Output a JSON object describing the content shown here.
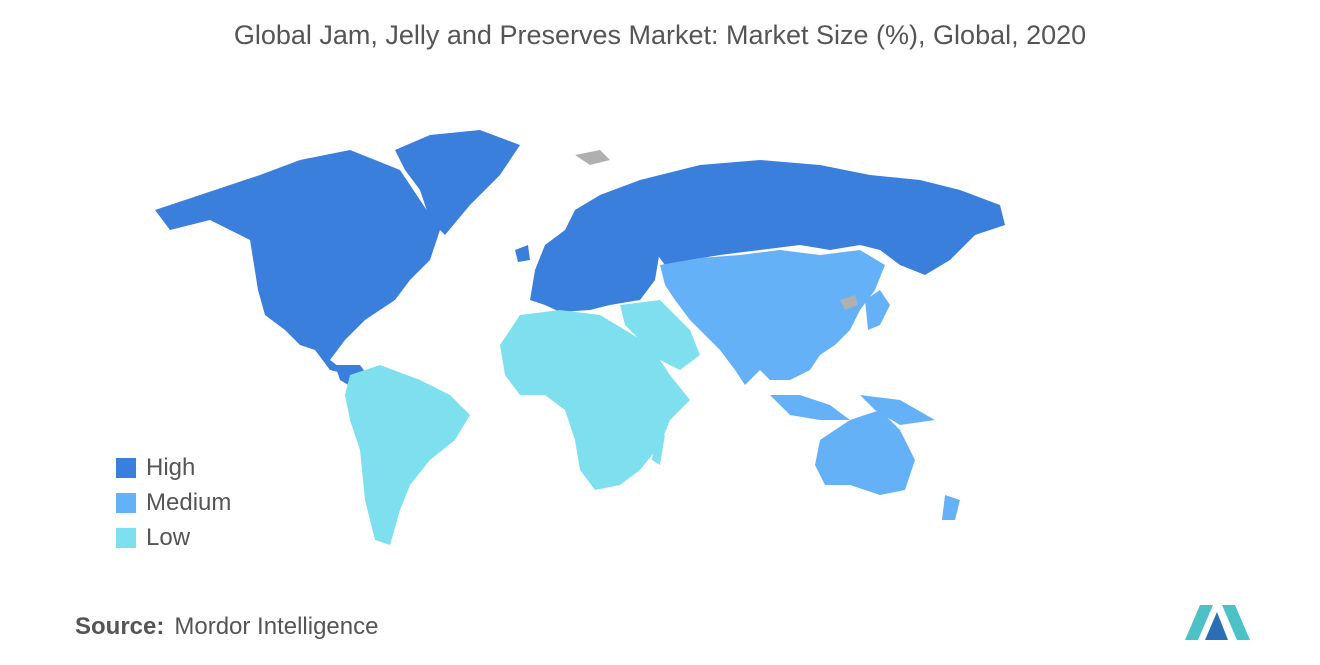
{
  "title": "Global Jam, Jelly and Preserves Market: Market Size (%), Global, 2020",
  "legend": [
    {
      "label": "High",
      "color": "#3b7fdd"
    },
    {
      "label": "Medium",
      "color": "#64b1f7"
    },
    {
      "label": "Low",
      "color": "#7ee0ef"
    }
  ],
  "source": {
    "label": "Source:",
    "text": "Mordor Intelligence"
  }
}
